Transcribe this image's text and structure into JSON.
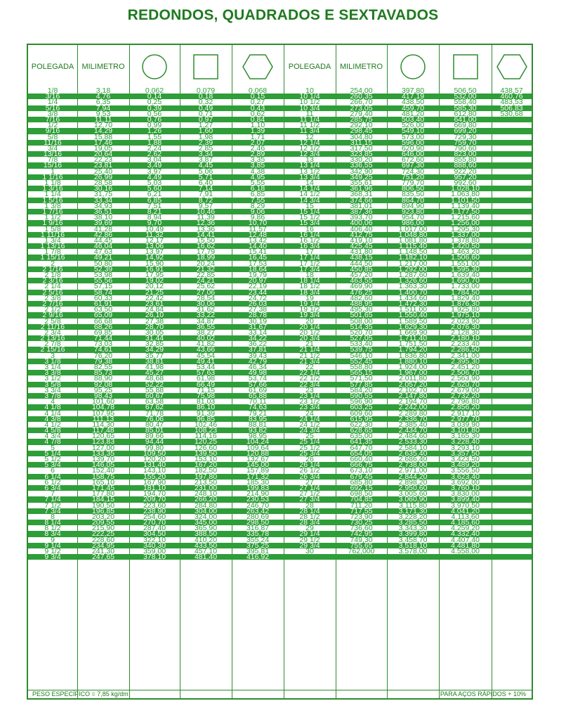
{
  "title": "REDONDOS, QUADRADOS E SEXTAVADOS",
  "headers": [
    "POLEGADA",
    "MILIMETRO",
    "circle-icon",
    "square-icon",
    "hexagon-icon",
    "POLEGADA",
    "MILIMETRO",
    "circle-icon",
    "square-icon",
    "hexagon-icon"
  ],
  "colors": {
    "green": "#2e9e38",
    "title": "#1f7a1f"
  },
  "rows": [
    [
      "1/8",
      "3,18",
      "0,062",
      "0,079",
      "0,068",
      "10",
      "254,00",
      "397,80",
      "506,50",
      "438,57"
    ],
    [
      "3/16",
      "4,76",
      "0,14",
      "0,18",
      "0,15",
      "10 1/4",
      "260,35",
      "417,19",
      "532,00",
      "460,76"
    ],
    [
      "1/4",
      "6,35",
      "0,25",
      "0,32",
      "0,27",
      "10 1/2",
      "266,70",
      "438,50",
      "558,40",
      "483,53"
    ],
    [
      "5/16",
      "7,94",
      "0,39",
      "0,49",
      "0,43",
      "10 3/4",
      "273,05",
      "459,70",
      "585,30",
      "506,83"
    ],
    [
      "3/8",
      "9,53",
      "0,56",
      "0,71",
      "0,62",
      "11",
      "279,40",
      "481,20",
      "612,80",
      "530,68"
    ],
    [
      "7/16",
      "11,11",
      "0,76",
      "0,97",
      "0,84",
      "11 1/4",
      "285,75",
      "503,40",
      "641,00",
      ""
    ],
    [
      "1/2",
      "12,70",
      "0,99",
      "1,27",
      "1,10",
      "11 1/2",
      "292,10",
      "526,00",
      "669,80",
      ""
    ],
    [
      "9/16",
      "14,29",
      "1,26",
      "1,60",
      "1,39",
      "11 3/4",
      "298,45",
      "549,10",
      "699,20",
      ""
    ],
    [
      "5/8",
      "15,88",
      "1,55",
      "1,98",
      "1,71",
      "12",
      "304,80",
      "573,00",
      "729,30",
      ""
    ],
    [
      "11/16",
      "17,46",
      "1,88",
      "2,39",
      "2,07",
      "12 1/4",
      "311,15",
      "596,00",
      "759,70",
      ""
    ],
    [
      "3/4",
      "19,05",
      "2,24",
      "2,85",
      "2,46",
      "12 1/2",
      "317,50",
      "620,90",
      "790,60",
      ""
    ],
    [
      "13/16",
      "20,64",
      "2,62",
      "3,34",
      "2,89",
      "12 3/4",
      "323,85",
      "646,00",
      "823,00",
      ""
    ],
    [
      "7/8",
      "22,23",
      "3,04",
      "3,87",
      "3,35",
      "13",
      "330,20",
      "672,60",
      "855,80",
      ""
    ],
    [
      "15/16",
      "23,81",
      "3,49",
      "4,45",
      "3,85",
      "13 1/4",
      "336,55",
      "697,30",
      "888,60",
      ""
    ],
    [
      "1",
      "25,40",
      "3,97",
      "5,06",
      "4,38",
      "13 1/2",
      "342,90",
      "724,30",
      "922,20",
      ""
    ],
    [
      "1 1/16",
      "26,99",
      "4,49",
      "5,71",
      "4,95",
      "13 3/4",
      "349,25",
      "751,20",
      "957,20",
      ""
    ],
    [
      "1 1/8",
      "28,58",
      "5,03",
      "6,40",
      "5,55",
      "14",
      "355,61",
      "779,70",
      "992,60",
      ""
    ],
    [
      "1 3/16",
      "30,16",
      "5,60",
      "7,14",
      "6,18",
      "14 1/4",
      "361,96",
      "806,50",
      "1.028,10",
      ""
    ],
    [
      "1 1/4",
      "31,75",
      "6,21",
      "7,91",
      "6,85",
      "14 1/2",
      "368,31",
      "835,50",
      "1.063,80",
      ""
    ],
    [
      "1 5/16",
      "33,34",
      "6,85",
      "8,72",
      "7,55",
      "14 3/4",
      "374,66",
      "864,70",
      "1.101,50",
      ""
    ],
    [
      "1 3/8",
      "34,93",
      "7,51",
      "9,57",
      "8,29",
      "15",
      "381,01",
      "894,90",
      "1.139,40",
      ""
    ],
    [
      "1 7/16",
      "36,51",
      "8,21",
      "10,46",
      "9,06",
      "15 1/4",
      "387,36",
      "923,80",
      "1.177,50",
      ""
    ],
    [
      "1 1/2",
      "38,10",
      "8,94",
      "11,39",
      "9,86",
      "15 1/2",
      "393,70",
      "954,70",
      "1.215,60",
      ""
    ],
    [
      "1 9/16",
      "39,69",
      "9,70",
      "12,36",
      "10,70",
      "15 3/4",
      "400,06",
      "986,00",
      "1.256,00",
      ""
    ],
    [
      "1 5/8",
      "41,28",
      "10,49",
      "13,36",
      "11,57",
      "16",
      "406,40",
      "1.017,00",
      "1.295,30",
      ""
    ],
    [
      "1 11/16",
      "42,86",
      "11,32",
      "14,41",
      "12,48",
      "16 1/4",
      "412,75",
      "1.048,80",
      "1.337,00",
      ""
    ],
    [
      "1 3/4",
      "44,45",
      "12,17",
      "15,50",
      "13,42",
      "16 1/2",
      "419,10",
      "1.081,80",
      "1.378,80",
      ""
    ],
    [
      "1 13/16",
      "46,04",
      "13,06",
      "16,62",
      "14,40",
      "16 3/4",
      "425,45",
      "1.115,40",
      "1.420,50",
      ""
    ],
    [
      "1 7/8",
      "47,63",
      "13,97",
      "17,79",
      "15,41",
      "17",
      "431,80",
      "1.148,50",
      "1.463,20",
      ""
    ],
    [
      "1 15/16",
      "49,21",
      "14,92",
      "18,99",
      "16,45",
      "17 1/4",
      "438,15",
      "1.182,10",
      "1.506,60",
      ""
    ],
    [
      "2",
      "50,80",
      "15,90",
      "20,24",
      "17,53",
      "17 1/2",
      "444,50",
      "1.217,00",
      "1.551,00",
      ""
    ],
    [
      "2 1/16",
      "52,39",
      "16,91",
      "21,32",
      "18,64",
      "17 3/4",
      "450,85",
      "1.292,00",
      "1.595,30",
      ""
    ],
    [
      "2 1/8",
      "53,98",
      "17,95",
      "22,85",
      "19,79",
      "18",
      "457,20",
      "1.287,60",
      "1.639,40",
      ""
    ],
    [
      "2 3/16",
      "55,56",
      "19,02",
      "24,21",
      "20,97",
      "18 1/4",
      "463,55",
      "1.326,60",
      "1.690,70",
      ""
    ],
    [
      "2 1/4",
      "57,15",
      "20,12",
      "25,62",
      "22,19",
      "18 1/2",
      "469,90",
      "1.363,30",
      "1.733,00",
      ""
    ],
    [
      "2 5/16",
      "58,74",
      "21,25",
      "27,06",
      "23,44",
      "18 3/4",
      "476,25",
      "1.400,70",
      "1.784,50",
      ""
    ],
    [
      "2 3/8",
      "60,33",
      "22,42",
      "28,54",
      "24,72",
      "19",
      "482,60",
      "1.434,60",
      "1.829,40",
      ""
    ],
    [
      "2 7/16",
      "61,91",
      "23,61",
      "30,06",
      "26,03",
      "19 1/4",
      "488,95",
      "1.472,30",
      "1.876,30",
      ""
    ],
    [
      "2 1/2",
      "63,50",
      "24,84",
      "31,62",
      "27,38",
      "19 1/2",
      "495,30",
      "1.511,00",
      "1.925,80",
      ""
    ],
    [
      "2 9/16",
      "65,09",
      "26,10",
      "33,22",
      "28,78",
      "19 3/4",
      "501,65",
      "1.550,40",
      "1.975,10",
      ""
    ],
    [
      "2 5/8",
      "66,68",
      "27,38",
      "34,87",
      "30,19",
      "20",
      "508,00",
      "1.589,50",
      "2.023,90",
      ""
    ],
    [
      "2 11/16",
      "68,26",
      "28,70",
      "36,55",
      "31,67",
      "20 1/4",
      "514,35",
      "1.629,30",
      "2.076,30",
      ""
    ],
    [
      "2 3/4",
      "69,85",
      "30,05",
      "38,27",
      "33,14",
      "20 1/2",
      "520,70",
      "1.669,90",
      "2.128,30",
      ""
    ],
    [
      "2 13/16",
      "71,44",
      "31,44",
      "40,02",
      "34,22",
      "20 3/4",
      "527,05",
      "1.711,40",
      "2.180,10",
      ""
    ],
    [
      "2 7/8",
      "73,03",
      "32,85",
      "41,82",
      "36,22",
      "21",
      "533,40",
      "1.751,50",
      "2.233,40",
      ""
    ],
    [
      "2 15/16",
      "74,61",
      "34,29",
      "43,66",
      "37,81",
      "21 1/4",
      "539,75",
      "1.794,20",
      "2.286,50",
      ""
    ],
    [
      "3",
      "76,20",
      "35,77",
      "45,54",
      "39,43",
      "21 1/2",
      "546,10",
      "1.836,80",
      "2.341,00",
      ""
    ],
    [
      "3 1/8",
      "79,38",
      "38,81",
      "49,41",
      "42,79",
      "21 3/4",
      "552,45",
      "1.880,10",
      "2.395,30",
      ""
    ],
    [
      "3 1/4",
      "82,55",
      "41,98",
      "53,44",
      "46,34",
      "22",
      "558,80",
      "1.924,00",
      "2.451,20",
      ""
    ],
    [
      "3 3/8",
      "85,73",
      "45,27",
      "57,63",
      "49,98",
      "22 1/4",
      "565,15",
      "1.967,00",
      "2.506,70",
      ""
    ],
    [
      "3 1/2",
      "88,90",
      "48,68",
      "61,98",
      "53,74",
      "22 1/2",
      "571,50",
      "2.011,80",
      "2.563,90",
      ""
    ],
    [
      "3 5/8",
      "92,08",
      "52,22",
      "66,49",
      "57,66",
      "22 3/4",
      "577,85",
      "2.057,20",
      "2.620,70",
      ""
    ],
    [
      "3 3/4",
      "95,25",
      "55,88",
      "71,15",
      "61,69",
      "23",
      "584,20",
      "2.102,70",
      "2.679,00",
      ""
    ],
    [
      "3 7/8",
      "98,43",
      "60,67",
      "75,98",
      "65,88",
      "23 1/4",
      "590,55",
      "2.147,80",
      "2.732,20",
      ""
    ],
    [
      "4",
      "101,60",
      "63,58",
      "81,03",
      "70,11",
      "23 1/2",
      "596,90",
      "2.194,70",
      "2.796,80",
      ""
    ],
    [
      "4 1/8",
      "104,78",
      "67,62",
      "86,10",
      "74,63",
      "23 3/4",
      "603,25",
      "2.242,00",
      "2.856,20",
      ""
    ],
    [
      "4 1/4",
      "107,95",
      "71,78",
      "91,39",
      "79,21",
      "24",
      "609,60",
      "2.289,80",
      "2.917,10",
      ""
    ],
    [
      "4 3/8",
      "111,13",
      "76,06",
      "96,85",
      "83,95",
      "24 1/4",
      "615,95",
      "2.336,70",
      "2.977,70",
      ""
    ],
    [
      "4 1/2",
      "114,30",
      "80,47",
      "102,46",
      "88,81",
      "24 1/2",
      "622,30",
      "2.385,40",
      "3.039,90",
      ""
    ],
    [
      "4 5/8",
      "117,48",
      "85,01",
      "108,23",
      "93,82",
      "24 3/4",
      "628,65",
      "2.434,70",
      "3.101,80",
      ""
    ],
    [
      "4 3/4",
      "120,65",
      "89,66",
      "114,16",
      "98,95",
      "25",
      "635,00",
      "2.484,60",
      "3.165,30",
      ""
    ],
    [
      "4 7/8",
      "123,83",
      "94,44",
      "120,25",
      "104,24",
      "25 1/4",
      "641,35",
      "2.533,30",
      "3.228,40",
      ""
    ],
    [
      "5",
      "127,00",
      "99,80",
      "126,60",
      "109,64",
      "25 1/2",
      "647,70",
      "2.584,10",
      "3.293,10",
      ""
    ],
    [
      "5 1/4",
      "133,35",
      "109,50",
      "139,50",
      "120,88",
      "25 3/4",
      "654,05",
      "2.635,40",
      "3.357,50",
      ""
    ],
    [
      "5 1/2",
      "139,70",
      "120,20",
      "153,10",
      "132,67",
      "26",
      "660,40",
      "2.686,40",
      "3.423,50",
      ""
    ],
    [
      "5 3/4",
      "146,05",
      "131,40",
      "167,20",
      "145,00",
      "26 1/4",
      "666,75",
      "2.738,00",
      "3.489,20",
      ""
    ],
    [
      "6",
      "152,40",
      "143,10",
      "182,50",
      "157,89",
      "26 1/2",
      "673,10",
      "2.971,00",
      "3.556,50",
      ""
    ],
    [
      "6 1/4",
      "158,75",
      "155,20",
      "197,80",
      "171,32",
      "26 3/4",
      "679,45",
      "2.844,20",
      "3.623,40",
      ""
    ],
    [
      "6 1/2",
      "165,10",
      "167,90",
      "213,50",
      "185,30",
      "27",
      "685,80",
      "2.898,20",
      "3.692,00",
      ""
    ],
    [
      "6 3/4",
      "171,45",
      "181,10",
      "231,00",
      "199,83",
      "27 1/4",
      "692,15",
      "2.950,60",
      "3.760,10",
      ""
    ],
    [
      "7",
      "177,80",
      "194,70",
      "248,10",
      "214,90",
      "27 1/2",
      "698,50",
      "3.005,60",
      "3.830,00",
      ""
    ],
    [
      "7 1/4",
      "184,15",
      "209,70",
      "266,20",
      "230,53",
      "27 3/4",
      "704,85",
      "3.060,90",
      "3.899,40",
      ""
    ],
    [
      "7 1/2",
      "190,50",
      "223,60",
      "284,80",
      "246,70",
      "28",
      "711,20",
      "3.115,80",
      "3.970,50",
      ""
    ],
    [
      "7 3/4",
      "196,85",
      "238,90",
      "304,00",
      "263,42",
      "28 1/4",
      "717,55",
      "3.171,30",
      "4.041,20",
      ""
    ],
    [
      "8",
      "203,20",
      "254,60",
      "324,00",
      "280,69",
      "28 1/2",
      "723,90",
      "3.228,20",
      "4.113,60",
      ""
    ],
    [
      "8 1/4",
      "209,55",
      "270,70",
      "345,00",
      "298,50",
      "28 3/4",
      "730,25",
      "3.285,50",
      "4.185,60",
      ""
    ],
    [
      "8 1/2",
      "215,90",
      "287,40",
      "365,90",
      "316,87",
      "29",
      "736,60",
      "3.343,30",
      "4.259,20",
      ""
    ],
    [
      "8 3/4",
      "222,25",
      "304,50",
      "388,50",
      "335,78",
      "29 1/4",
      "742,95",
      "3.399,80",
      "4.332,40",
      ""
    ],
    [
      "9",
      "228,60",
      "322,10",
      "410,20",
      "355,24",
      "29 1/2",
      "749,30",
      "3.458,70",
      "4.407,40",
      ""
    ],
    [
      "9 1/4",
      "234,95",
      "340,30",
      "433,50",
      "375,25",
      "29 3/4",
      "755,65",
      "3.518,10",
      "4.481,80",
      ""
    ],
    [
      "9 1/2",
      "241,30",
      "359,00",
      "457,10",
      "395,81",
      "30",
      "762,000",
      "3.578,00",
      "4.558,00",
      ""
    ],
    [
      "9 3/4",
      "247,65",
      "378,10",
      "481,40",
      "416,92",
      "",
      "",
      "",
      "",
      ""
    ]
  ],
  "footer": {
    "left": "PESO ESPECÍFICO = 7,85 kg/dm",
    "right": "PARA AÇOS RÁPIDOS + 10%"
  }
}
